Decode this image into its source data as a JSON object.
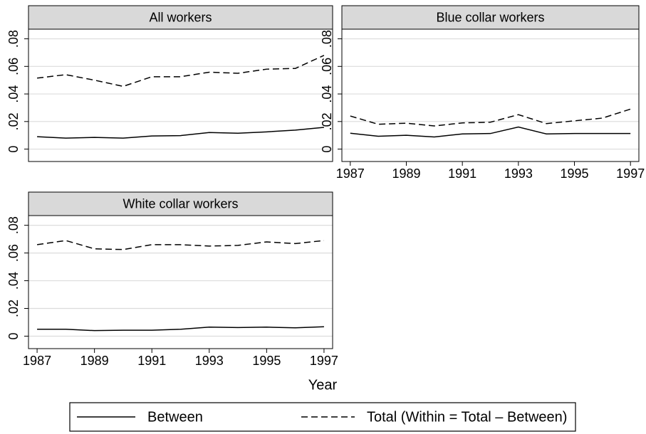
{
  "chart_data": [
    {
      "type": "line",
      "title": "All workers",
      "x": [
        1987,
        1988,
        1989,
        1990,
        1991,
        1992,
        1993,
        1994,
        1995,
        1996,
        1997
      ],
      "series": [
        {
          "name": "Between",
          "color": "#000000",
          "line_style": "solid",
          "values": [
            0.009,
            0.008,
            0.0085,
            0.008,
            0.0095,
            0.0098,
            0.012,
            0.0115,
            0.0125,
            0.0138,
            0.0158
          ]
        },
        {
          "name": "Total (Within = Total – Between)",
          "color": "#000000",
          "line_style": "dashed",
          "values": [
            0.0515,
            0.054,
            0.05,
            0.0455,
            0.0525,
            0.0525,
            0.0558,
            0.055,
            0.058,
            0.0585,
            0.068
          ]
        }
      ],
      "xlim": [
        1986.7,
        1997.3
      ],
      "ylim": [
        -0.009,
        0.087
      ],
      "yticks": [
        0,
        {
          "value": 0.02,
          "label": ".02"
        },
        {
          "value": 0.04,
          "label": ".04"
        },
        {
          "value": 0.06,
          "label": ".06"
        },
        {
          "value": 0.08,
          "label": ".08"
        }
      ],
      "grid": true
    },
    {
      "type": "line",
      "title": "Blue collar workers",
      "x": [
        1987,
        1988,
        1989,
        1990,
        1991,
        1992,
        1993,
        1994,
        1995,
        1996,
        1997
      ],
      "series": [
        {
          "name": "Between",
          "color": "#000000",
          "line_style": "solid",
          "values": [
            0.0115,
            0.0093,
            0.01,
            0.0088,
            0.011,
            0.0113,
            0.016,
            0.011,
            0.0113,
            0.0113,
            0.0113
          ]
        },
        {
          "name": "Total (Within = Total – Between)",
          "color": "#000000",
          "line_style": "dashed",
          "values": [
            0.024,
            0.018,
            0.0188,
            0.0168,
            0.019,
            0.0195,
            0.025,
            0.0185,
            0.0205,
            0.0225,
            0.029
          ]
        }
      ],
      "xlim": [
        1986.7,
        1997.3
      ],
      "ylim": [
        -0.009,
        0.087
      ],
      "xticks": [
        1987,
        1989,
        1991,
        1993,
        1995,
        1997
      ],
      "yticks": [
        0,
        {
          "value": 0.02,
          "label": ".02"
        },
        {
          "value": 0.04,
          "label": ".04"
        },
        {
          "value": 0.06,
          "label": ".06"
        },
        {
          "value": 0.08,
          "label": ".08"
        }
      ],
      "grid": true
    },
    {
      "type": "line",
      "title": "White collar workers",
      "x": [
        1987,
        1988,
        1989,
        1990,
        1991,
        1992,
        1993,
        1994,
        1995,
        1996,
        1997
      ],
      "series": [
        {
          "name": "Between",
          "color": "#000000",
          "line_style": "solid",
          "values": [
            0.005,
            0.005,
            0.004,
            0.0043,
            0.0043,
            0.005,
            0.0065,
            0.0062,
            0.0065,
            0.006,
            0.0068
          ]
        },
        {
          "name": "Total (Within = Total – Between)",
          "color": "#000000",
          "line_style": "dashed",
          "values": [
            0.066,
            0.069,
            0.063,
            0.0625,
            0.066,
            0.066,
            0.065,
            0.0655,
            0.068,
            0.0668,
            0.069
          ]
        }
      ],
      "xlim": [
        1986.7,
        1997.3
      ],
      "ylim": [
        -0.009,
        0.087
      ],
      "xticks": [
        1987,
        1989,
        1991,
        1993,
        1995,
        1997
      ],
      "yticks": [
        0,
        {
          "value": 0.02,
          "label": ".02"
        },
        {
          "value": 0.04,
          "label": ".04"
        },
        {
          "value": 0.06,
          "label": ".06"
        },
        {
          "value": 0.08,
          "label": ".08"
        }
      ],
      "grid": true
    }
  ],
  "xlabel": "Year"
}
